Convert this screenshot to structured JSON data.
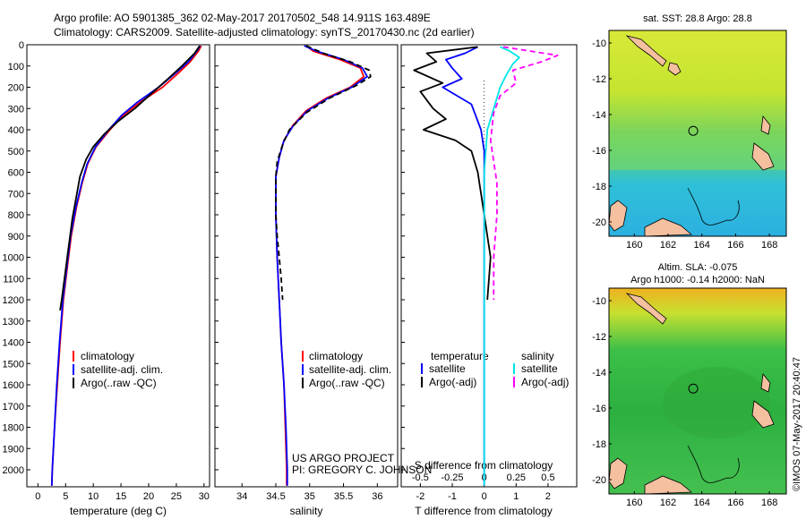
{
  "header": {
    "line1": "Argo profile: AO 5901385_362 02-May-2017 20170502_548 14.911S 163.489E",
    "line2": "Climatology: CARS2009. Satellite-adjusted climatology: synTS_20170430.nc (2d earlier)"
  },
  "credit": {
    "project": "US ARGO PROJECT",
    "pi": "PI: GREGORY C. JOHNSON"
  },
  "stamp": "©IMOS 07-May-2017 20:40:47",
  "colors": {
    "climatology": "#ff0000",
    "satellite": "#0000ff",
    "argo": "#000000",
    "sat_salinity": "#00e5e5",
    "argo_salinity": "#ff00ff"
  },
  "chart_data": [
    {
      "type": "line",
      "xlabel": "temperature (deg C)",
      "ylabel": "",
      "xlim": [
        -2,
        31
      ],
      "ylim": [
        2080,
        0
      ],
      "xticks": [
        "0",
        "5",
        "10",
        "15",
        "20",
        "25",
        "30"
      ],
      "yticks": [
        "0",
        "100",
        "200",
        "300",
        "400",
        "500",
        "600",
        "700",
        "800",
        "900",
        "1000",
        "1100",
        "1200",
        "1300",
        "1400",
        "1500",
        "1600",
        "1700",
        "1800",
        "1900",
        "2000"
      ],
      "legend": [
        "climatology",
        "satellite-adj. clim.",
        "Argo(..raw -QC)"
      ],
      "series": [
        {
          "name": "climatology",
          "color": "#ff0000",
          "points": [
            [
              29.5,
              5
            ],
            [
              29.0,
              30
            ],
            [
              27.5,
              80
            ],
            [
              25.5,
              130
            ],
            [
              22.5,
              200
            ],
            [
              18.5,
              270
            ],
            [
              15.5,
              330
            ],
            [
              13.0,
              400
            ],
            [
              10.5,
              480
            ],
            [
              9.0,
              560
            ],
            [
              8.0,
              650
            ],
            [
              7.0,
              760
            ],
            [
              6.0,
              900
            ],
            [
              5.3,
              1050
            ],
            [
              4.6,
              1200
            ],
            [
              4.0,
              1400
            ],
            [
              3.5,
              1600
            ],
            [
              3.0,
              1800
            ],
            [
              2.6,
              2000
            ],
            [
              2.5,
              2075
            ]
          ]
        },
        {
          "name": "satellite-adj. clim.",
          "color": "#0000ff",
          "points": [
            [
              29.3,
              5
            ],
            [
              28.7,
              30
            ],
            [
              27.2,
              80
            ],
            [
              25.0,
              130
            ],
            [
              21.8,
              200
            ],
            [
              18.0,
              270
            ],
            [
              15.2,
              330
            ],
            [
              12.8,
              400
            ],
            [
              10.4,
              480
            ],
            [
              8.9,
              560
            ],
            [
              7.9,
              650
            ],
            [
              6.9,
              760
            ],
            [
              5.9,
              900
            ],
            [
              5.2,
              1050
            ],
            [
              4.5,
              1200
            ],
            [
              3.9,
              1400
            ],
            [
              3.4,
              1600
            ],
            [
              3.0,
              1800
            ],
            [
              2.6,
              2000
            ],
            [
              2.5,
              2075
            ]
          ]
        },
        {
          "name": "Argo(..raw -QC)",
          "color": "#000000",
          "points": [
            [
              29.2,
              5
            ],
            [
              28.3,
              40
            ],
            [
              26.0,
              100
            ],
            [
              23.5,
              160
            ],
            [
              20.5,
              230
            ],
            [
              17.5,
              300
            ],
            [
              14.5,
              360
            ],
            [
              12.0,
              420
            ],
            [
              10.0,
              480
            ],
            [
              8.7,
              540
            ],
            [
              7.6,
              620
            ],
            [
              6.9,
              720
            ],
            [
              6.2,
              820
            ],
            [
              5.7,
              920
            ],
            [
              5.3,
              1000
            ],
            [
              4.8,
              1100
            ],
            [
              4.3,
              1200
            ],
            [
              4.0,
              1250
            ]
          ]
        }
      ]
    },
    {
      "type": "line",
      "xlabel": "salinity",
      "xlim": [
        33.6,
        36.3
      ],
      "ylim": [
        2080,
        0
      ],
      "xticks": [
        "34",
        "34.5",
        "35",
        "35.5",
        "36"
      ],
      "legend": [
        "climatology",
        "satellite-adj. clim.",
        "Argo(..raw -QC)"
      ],
      "series": [
        {
          "name": "climatology",
          "color": "#ff0000",
          "points": [
            [
              34.95,
              5
            ],
            [
              35.05,
              30
            ],
            [
              35.45,
              70
            ],
            [
              35.75,
              110
            ],
            [
              35.8,
              150
            ],
            [
              35.6,
              200
            ],
            [
              35.25,
              250
            ],
            [
              34.95,
              310
            ],
            [
              34.75,
              380
            ],
            [
              34.62,
              450
            ],
            [
              34.55,
              530
            ],
            [
              34.5,
              620
            ],
            [
              34.5,
              800
            ],
            [
              34.52,
              1000
            ],
            [
              34.55,
              1200
            ],
            [
              34.58,
              1400
            ],
            [
              34.62,
              1600
            ],
            [
              34.64,
              1800
            ],
            [
              34.66,
              2000
            ],
            [
              34.66,
              2075
            ]
          ]
        },
        {
          "name": "satellite-adj. clim.",
          "color": "#0000ff",
          "points": [
            [
              34.92,
              5
            ],
            [
              35.1,
              30
            ],
            [
              35.5,
              70
            ],
            [
              35.78,
              110
            ],
            [
              35.85,
              150
            ],
            [
              35.62,
              200
            ],
            [
              35.28,
              250
            ],
            [
              34.97,
              310
            ],
            [
              34.76,
              380
            ],
            [
              34.62,
              450
            ],
            [
              34.55,
              530
            ],
            [
              34.5,
              620
            ],
            [
              34.5,
              800
            ],
            [
              34.52,
              1000
            ],
            [
              34.55,
              1200
            ],
            [
              34.58,
              1400
            ],
            [
              34.62,
              1600
            ],
            [
              34.65,
              1800
            ],
            [
              34.67,
              2000
            ],
            [
              34.67,
              2075
            ]
          ]
        },
        {
          "name": "Argo(..raw -QC)",
          "color": "#000000",
          "points": [
            [
              34.95,
              5
            ],
            [
              35.2,
              40
            ],
            [
              35.6,
              80
            ],
            [
              35.88,
              120
            ],
            [
              35.9,
              150
            ],
            [
              35.7,
              190
            ],
            [
              35.3,
              250
            ],
            [
              34.95,
              320
            ],
            [
              34.7,
              400
            ],
            [
              34.6,
              470
            ],
            [
              34.52,
              550
            ],
            [
              34.5,
              620
            ],
            [
              34.5,
              700
            ],
            [
              34.5,
              800
            ],
            [
              34.52,
              900
            ],
            [
              34.55,
              1000
            ],
            [
              34.58,
              1100
            ],
            [
              34.6,
              1200
            ]
          ]
        }
      ]
    },
    {
      "type": "line",
      "xlabel_s": "S difference from climatology",
      "xlabel_t": "T difference from climatology",
      "xlim": [
        -2.6,
        2.9
      ],
      "ylim": [
        2080,
        0
      ],
      "xticks_t": [
        "-2",
        "-1",
        "0",
        "1",
        "2"
      ],
      "xticks_s": [
        "-0.5",
        "-0.25",
        "0",
        "0.25",
        "0.5"
      ],
      "legend": {
        "temperature_title": "temperature",
        "salinity_title": "salinity",
        "items": [
          "satellite",
          "Argo(-adj)",
          "satellite",
          "Argo(-adj)"
        ]
      },
      "series": [
        {
          "name": "temperature satellite",
          "color": "#0000ff",
          "points": [
            [
              -0.2,
              10
            ],
            [
              -0.6,
              40
            ],
            [
              -1.2,
              70
            ],
            [
              -1.0,
              110
            ],
            [
              -0.7,
              160
            ],
            [
              -1.3,
              200
            ],
            [
              -0.4,
              280
            ],
            [
              -0.1,
              400
            ],
            [
              0,
              500
            ],
            [
              0,
              700
            ],
            [
              0,
              1000
            ],
            [
              0,
              2075
            ]
          ]
        },
        {
          "name": "temperature Argo(-adj)",
          "color": "#000000",
          "points": [
            [
              -0.2,
              10
            ],
            [
              -1.8,
              40
            ],
            [
              -1.5,
              80
            ],
            [
              -2.2,
              120
            ],
            [
              -1.3,
              180
            ],
            [
              -2.0,
              220
            ],
            [
              -1.6,
              300
            ],
            [
              -1.2,
              350
            ],
            [
              -1.9,
              400
            ],
            [
              -0.9,
              450
            ],
            [
              -0.4,
              500
            ],
            [
              -0.2,
              600
            ],
            [
              -0.1,
              700
            ],
            [
              0,
              800
            ],
            [
              0.1,
              900
            ],
            [
              0.2,
              1000
            ],
            [
              0.15,
              1100
            ],
            [
              0.1,
              1200
            ]
          ]
        },
        {
          "name": "salinity satellite",
          "color": "#00e5e5",
          "points": [
            [
              0.5,
              10
            ],
            [
              0.8,
              30
            ],
            [
              1.1,
              60
            ],
            [
              0.9,
              90
            ],
            [
              0.7,
              140
            ],
            [
              0.5,
              200
            ],
            [
              0.3,
              300
            ],
            [
              0.1,
              400
            ],
            [
              0,
              600
            ],
            [
              0,
              1000
            ],
            [
              0,
              2075
            ]
          ]
        },
        {
          "name": "salinity Argo(-adj)",
          "color": "#ff00ff",
          "points": [
            [
              0.6,
              10
            ],
            [
              2.3,
              50
            ],
            [
              1.8,
              80
            ],
            [
              0.9,
              120
            ],
            [
              1.0,
              180
            ],
            [
              0.5,
              240
            ],
            [
              0.3,
              320
            ],
            [
              0.2,
              450
            ],
            [
              0.3,
              550
            ],
            [
              0.4,
              650
            ],
            [
              0.4,
              800
            ],
            [
              0.3,
              1000
            ],
            [
              0.3,
              1200
            ]
          ]
        }
      ]
    },
    {
      "type": "heatmap",
      "title": "sat. SST: 28.8 Argo: 28.8",
      "xticks": [
        "160",
        "162",
        "164",
        "166",
        "168"
      ],
      "yticks": [
        "-10",
        "-12",
        "-14",
        "-16",
        "-18",
        "-20"
      ],
      "xlim": [
        158.5,
        169
      ],
      "ylim": [
        -20.8,
        -9.3
      ],
      "marker": {
        "lon": 163.489,
        "lat": -14.911
      }
    },
    {
      "type": "heatmap",
      "title_line1": "Altim. SLA: -0.075",
      "title_line2": "Argo h1000: -0.14 h2000: NaN",
      "xticks": [
        "160",
        "162",
        "164",
        "166",
        "168"
      ],
      "yticks": [
        "-10",
        "-12",
        "-14",
        "-16",
        "-18",
        "-20"
      ],
      "xlim": [
        158.5,
        169
      ],
      "ylim": [
        -20.8,
        -9.3
      ],
      "marker": {
        "lon": 163.489,
        "lat": -14.911
      }
    }
  ]
}
